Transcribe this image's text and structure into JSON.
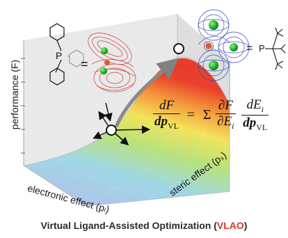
{
  "axes": {
    "y_label": "performance (F)",
    "x_label": "electronic effect (pₗ)",
    "z_label": "steric effect (pₛ)"
  },
  "ligand_left": {
    "atom": "P",
    "equals": "="
  },
  "ligand_right": {
    "atom": "P",
    "equals": "="
  },
  "equation": {
    "lhs_num": "dF",
    "lhs_den": "dp",
    "lhs_den_sub": "VL",
    "equals": "=",
    "sigma": "Σ",
    "t1_num": "∂F",
    "t1_den": "∂E",
    "t1_den_sub": "i",
    "t2_num": "dE",
    "t2_num_sub": "i",
    "t2_den": "dp",
    "t2_den_sub": "VL"
  },
  "caption": {
    "prefix": "Virtual Ligand-Assisted Optimization (",
    "highlight": "VLAO",
    "suffix": ")"
  },
  "colors": {
    "surface_peak": "#e8402a",
    "surface_base": "#b9bde8",
    "highlight": "#d9372b",
    "left_orbital": "#cc3b3b",
    "right_orbital": "#3b4fb8",
    "green_atom": "#2bbf3a"
  }
}
